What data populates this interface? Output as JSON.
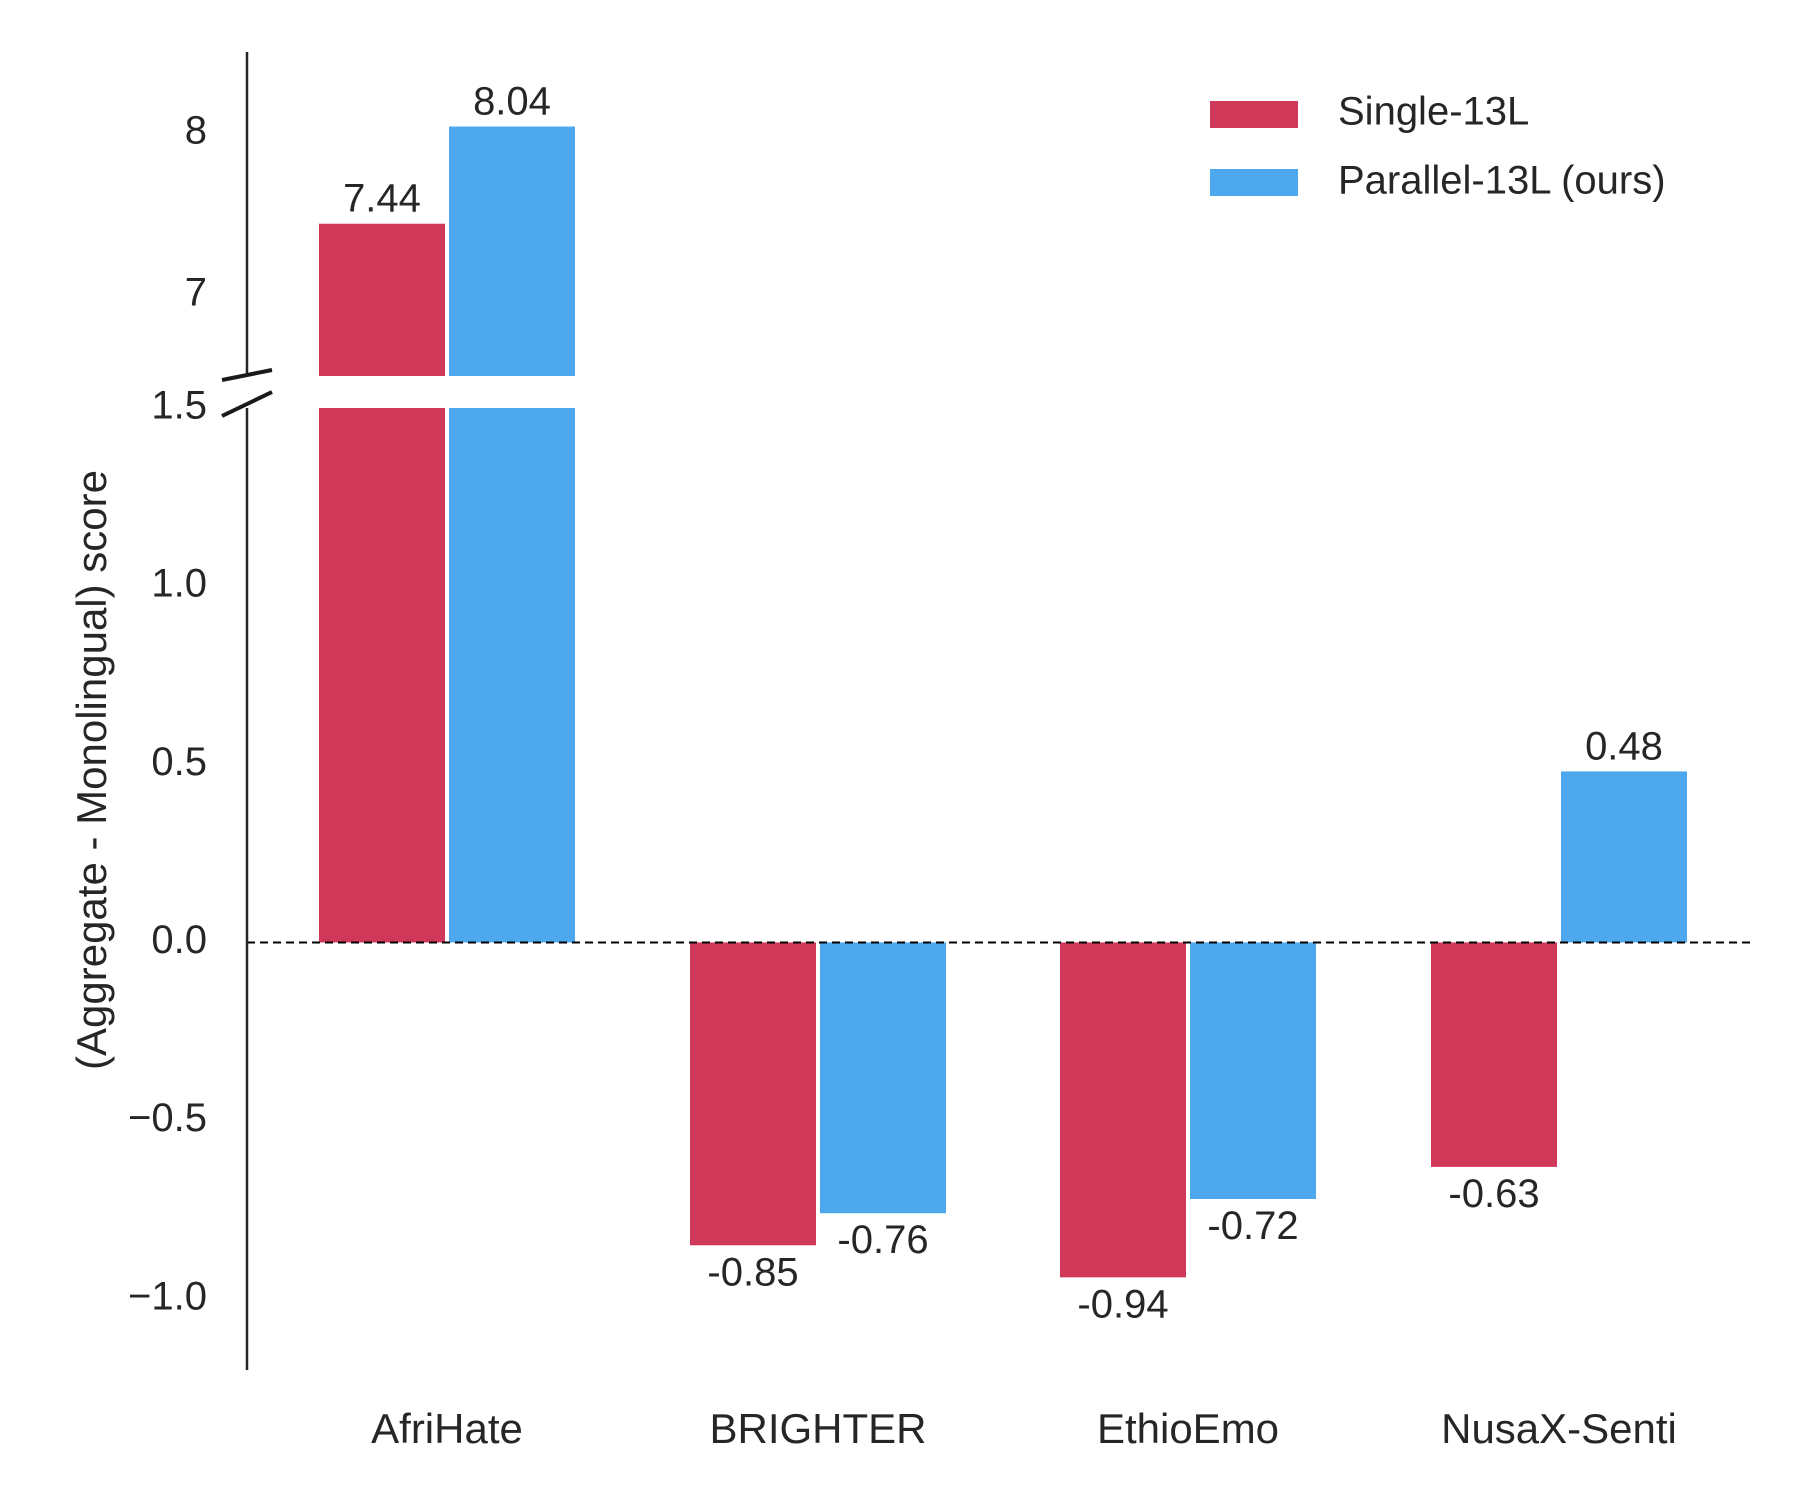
{
  "chart_data": {
    "type": "bar",
    "title": "",
    "xlabel": "",
    "ylabel": "(Aggregate - Monolingual) score",
    "categories": [
      "AfriHate",
      "BRIGHTER",
      "EthioEmo",
      "NusaX-Senti"
    ],
    "series": [
      {
        "name": "Single-13L",
        "color": "#d0385a",
        "values": [
          7.44,
          -0.85,
          -0.94,
          -0.63
        ],
        "labels": [
          "7.44",
          "-0.85",
          "-0.94",
          "-0.63"
        ]
      },
      {
        "name": "Parallel-13L (ours)",
        "color": "#4da8ee",
        "values": [
          8.04,
          -0.76,
          -0.72,
          0.48
        ],
        "labels": [
          "8.04",
          "-0.76",
          "-0.72",
          "0.48"
        ]
      }
    ],
    "axis_break": true,
    "lower_ylim": [
      -1.2,
      1.5
    ],
    "upper_ylim": [
      6.5,
      8.5
    ],
    "lower_yticks": [
      "−1.0",
      "−0.5",
      "0.0",
      "0.5",
      "1.0",
      "1.5"
    ],
    "upper_yticks": [
      "7",
      "8"
    ],
    "lower_ytick_values": [
      -1.0,
      -0.5,
      0.0,
      0.5,
      1.0,
      1.5
    ],
    "upper_ytick_values": [
      7,
      8
    ],
    "reference_line": 0.0,
    "grid": false,
    "legend_position": "top-right"
  }
}
